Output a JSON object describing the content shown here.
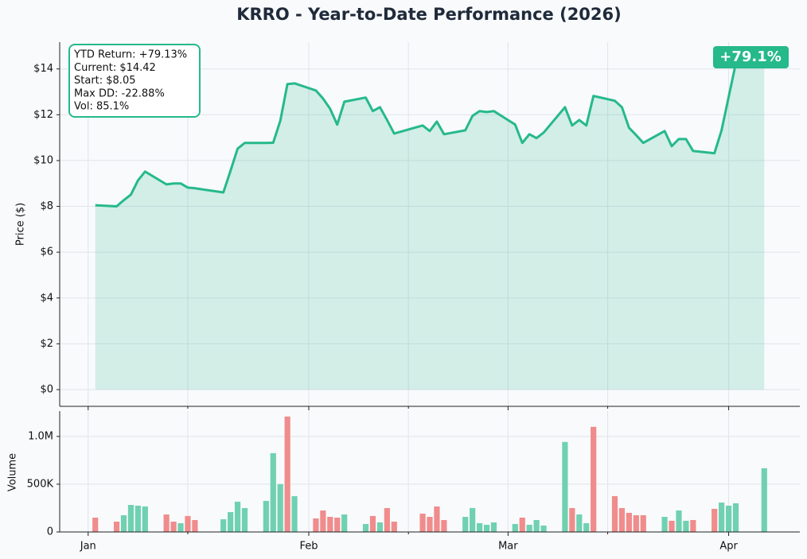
{
  "chart_data": [
    {
      "type": "line",
      "title": "KRRO - Year-to-Date Performance (2026)",
      "ylabel": "Price ($)",
      "color": "#26b98a",
      "area": true,
      "x": [
        "2026-01-02",
        "2026-01-05",
        "2026-01-06",
        "2026-01-07",
        "2026-01-08",
        "2026-01-09",
        "2026-01-12",
        "2026-01-13",
        "2026-01-14",
        "2026-01-15",
        "2026-01-16",
        "2026-01-20",
        "2026-01-21",
        "2026-01-22",
        "2026-01-23",
        "2026-01-26",
        "2026-01-27",
        "2026-01-28",
        "2026-01-29",
        "2026-01-30",
        "2026-02-02",
        "2026-02-03",
        "2026-02-04",
        "2026-02-05",
        "2026-02-06",
        "2026-02-09",
        "2026-02-10",
        "2026-02-11",
        "2026-02-12",
        "2026-02-13",
        "2026-02-17",
        "2026-02-18",
        "2026-02-19",
        "2026-02-20",
        "2026-02-23",
        "2026-02-24",
        "2026-02-25",
        "2026-02-26",
        "2026-02-27",
        "2026-03-02",
        "2026-03-03",
        "2026-03-04",
        "2026-03-05",
        "2026-03-06",
        "2026-03-09",
        "2026-03-10",
        "2026-03-11",
        "2026-03-12",
        "2026-03-13",
        "2026-03-16",
        "2026-03-17",
        "2026-03-18",
        "2026-03-19",
        "2026-03-20",
        "2026-03-23",
        "2026-03-24",
        "2026-03-25",
        "2026-03-26",
        "2026-03-27",
        "2026-03-30",
        "2026-03-31",
        "2026-04-01",
        "2026-04-02",
        "2026-04-06"
      ],
      "values": [
        8.05,
        8.0,
        8.27,
        8.51,
        9.13,
        9.52,
        8.96,
        9.0,
        9.0,
        8.82,
        8.79,
        8.61,
        9.55,
        10.52,
        10.77,
        10.77,
        10.78,
        11.74,
        13.34,
        13.37,
        13.06,
        12.71,
        12.26,
        11.57,
        12.57,
        12.75,
        12.16,
        12.33,
        11.77,
        11.18,
        11.53,
        11.29,
        11.7,
        11.15,
        11.32,
        11.95,
        12.16,
        12.12,
        12.16,
        11.57,
        10.77,
        11.15,
        10.98,
        11.22,
        12.33,
        11.53,
        11.77,
        11.53,
        12.82,
        12.61,
        12.33,
        11.43,
        11.11,
        10.77,
        11.29,
        10.63,
        10.94,
        10.94,
        10.42,
        10.32,
        11.32,
        12.78,
        14.24,
        14.42
      ],
      "ylim": [
        -0.73,
        15.17
      ],
      "yticks": [
        {
          "value": 0,
          "label": "$0"
        },
        {
          "value": 2,
          "label": "$2"
        },
        {
          "value": 4,
          "label": "$4"
        },
        {
          "value": 6,
          "label": "$6"
        },
        {
          "value": 8,
          "label": "$8"
        },
        {
          "value": 10,
          "label": "$10"
        },
        {
          "value": 12,
          "label": "$12"
        },
        {
          "value": 14,
          "label": "$14"
        }
      ],
      "grid": true,
      "stats": [
        "YTD Return: +79.13%",
        "Current: $14.42",
        "Start: $8.05",
        "Max DD: -22.88%",
        "Vol: 85.1%"
      ],
      "badge": "+79.1%"
    },
    {
      "type": "bar",
      "ylabel": "Volume",
      "x": [
        "2026-01-02",
        "2026-01-05",
        "2026-01-06",
        "2026-01-07",
        "2026-01-08",
        "2026-01-09",
        "2026-01-12",
        "2026-01-13",
        "2026-01-14",
        "2026-01-15",
        "2026-01-16",
        "2026-01-20",
        "2026-01-21",
        "2026-01-22",
        "2026-01-23",
        "2026-01-26",
        "2026-01-27",
        "2026-01-28",
        "2026-01-29",
        "2026-01-30",
        "2026-02-02",
        "2026-02-03",
        "2026-02-04",
        "2026-02-05",
        "2026-02-06",
        "2026-02-09",
        "2026-02-10",
        "2026-02-11",
        "2026-02-12",
        "2026-02-13",
        "2026-02-17",
        "2026-02-18",
        "2026-02-19",
        "2026-02-20",
        "2026-02-23",
        "2026-02-24",
        "2026-02-25",
        "2026-02-26",
        "2026-02-27",
        "2026-03-02",
        "2026-03-03",
        "2026-03-04",
        "2026-03-05",
        "2026-03-06",
        "2026-03-09",
        "2026-03-10",
        "2026-03-11",
        "2026-03-12",
        "2026-03-13",
        "2026-03-16",
        "2026-03-17",
        "2026-03-18",
        "2026-03-19",
        "2026-03-20",
        "2026-03-23",
        "2026-03-24",
        "2026-03-25",
        "2026-03-26",
        "2026-03-27",
        "2026-03-30",
        "2026-03-31",
        "2026-04-01",
        "2026-04-02",
        "2026-04-06"
      ],
      "values": [
        150000,
        108000,
        175000,
        283000,
        275000,
        267000,
        183000,
        108000,
        92000,
        167000,
        125000,
        133000,
        208000,
        317000,
        250000,
        325000,
        825000,
        500000,
        1208000,
        375000,
        142000,
        225000,
        158000,
        150000,
        183000,
        83000,
        167000,
        100000,
        250000,
        108000,
        192000,
        158000,
        267000,
        125000,
        158000,
        250000,
        92000,
        75000,
        100000,
        83000,
        150000,
        75000,
        125000,
        67000,
        942000,
        250000,
        183000,
        92000,
        1100000,
        375000,
        250000,
        200000,
        175000,
        175000,
        158000,
        117000,
        225000,
        117000,
        125000,
        242000,
        308000,
        275000,
        300000,
        667000
      ],
      "colors": [
        "#f08c8c",
        "#f08c8c",
        "#70d1b1",
        "#70d1b1",
        "#70d1b1",
        "#70d1b1",
        "#f08c8c",
        "#f08c8c",
        "#70d1b1",
        "#f08c8c",
        "#f08c8c",
        "#70d1b1",
        "#70d1b1",
        "#70d1b1",
        "#70d1b1",
        "#70d1b1",
        "#70d1b1",
        "#70d1b1",
        "#f08c8c",
        "#70d1b1",
        "#f08c8c",
        "#f08c8c",
        "#f08c8c",
        "#f08c8c",
        "#70d1b1",
        "#70d1b1",
        "#f08c8c",
        "#70d1b1",
        "#f08c8c",
        "#f08c8c",
        "#f08c8c",
        "#f08c8c",
        "#f08c8c",
        "#f08c8c",
        "#70d1b1",
        "#70d1b1",
        "#70d1b1",
        "#70d1b1",
        "#70d1b1",
        "#70d1b1",
        "#f08c8c",
        "#70d1b1",
        "#70d1b1",
        "#70d1b1",
        "#70d1b1",
        "#f08c8c",
        "#70d1b1",
        "#70d1b1",
        "#f08c8c",
        "#f08c8c",
        "#f08c8c",
        "#f08c8c",
        "#f08c8c",
        "#f08c8c",
        "#70d1b1",
        "#f08c8c",
        "#70d1b1",
        "#70d1b1",
        "#f08c8c",
        "#f08c8c",
        "#70d1b1",
        "#70d1b1",
        "#70d1b1",
        "#70d1b1"
      ],
      "ylim": [
        0,
        1265000
      ],
      "yticks": [
        0,
        {
          "value": 500000,
          "label": "500K"
        },
        {
          "value": 1000000,
          "label": "1.0M"
        }
      ],
      "xlim": [
        "2025-12-28",
        "2026-04-11"
      ],
      "xticks": [
        {
          "value": "2026-01-01",
          "label": "Jan"
        },
        {
          "value": "2026-02-01",
          "label": "Feb"
        },
        {
          "value": "2026-03-01",
          "label": "Mar"
        },
        {
          "value": "2026-04-01",
          "label": "Apr"
        }
      ],
      "xticks_minor": [
        "2026-01-15",
        "2026-02-15",
        "2026-03-15"
      ],
      "grid": true
    }
  ]
}
